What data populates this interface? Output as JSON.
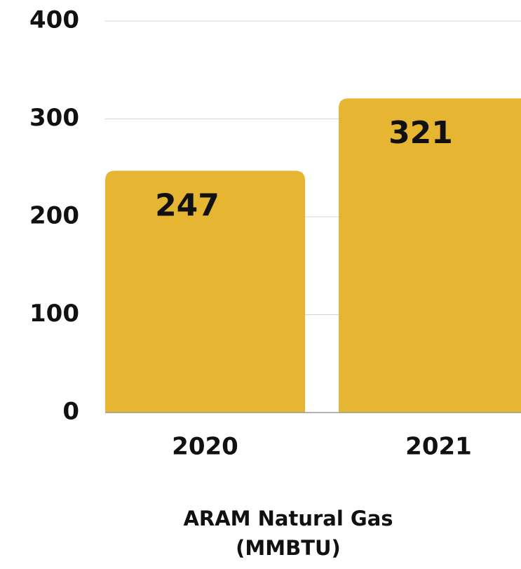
{
  "chart_data": {
    "type": "bar",
    "x_label": "ARAM Natural Gas (MMBTU)",
    "categories": [
      "2020",
      "2021"
    ],
    "values": [
      247,
      321
    ],
    "color": "#e6b532",
    "ylim": [
      0,
      400
    ],
    "yticks": [
      0,
      100,
      200,
      300,
      400
    ],
    "grid": true
  }
}
